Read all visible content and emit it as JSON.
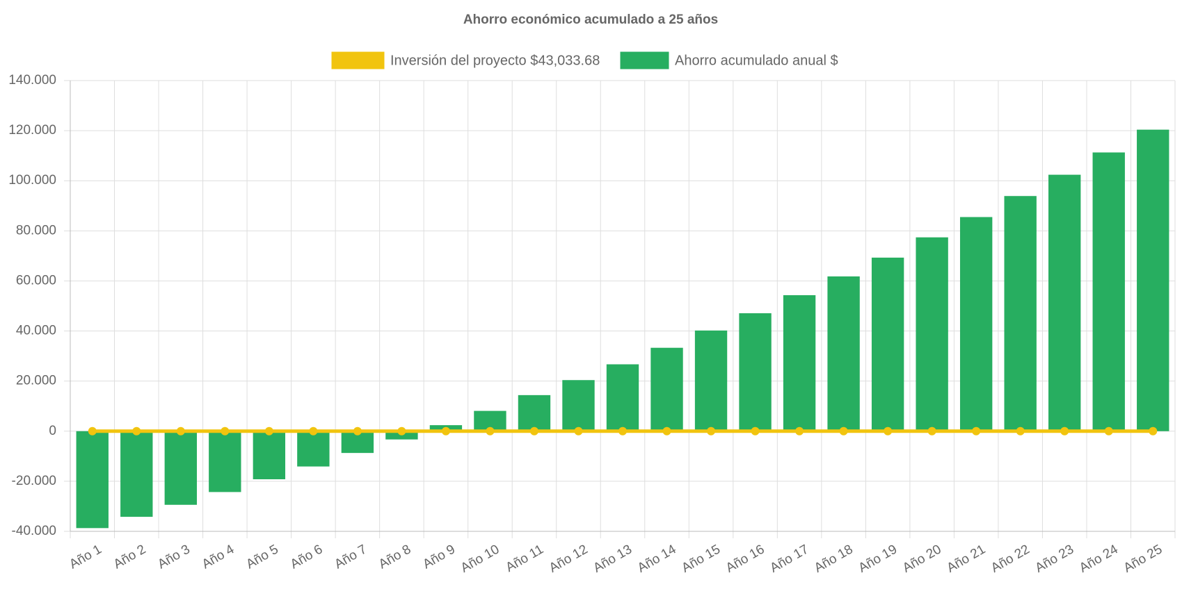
{
  "chart_data": {
    "type": "bar",
    "title": "Ahorro económico acumulado a 25 años",
    "categories": [
      "Año 1",
      "Año 2",
      "Año 3",
      "Año 4",
      "Año 5",
      "Año 6",
      "Año 7",
      "Año 8",
      "Año 9",
      "Año 10",
      "Año 11",
      "Año 12",
      "Año 13",
      "Año 14",
      "Año 15",
      "Año 16",
      "Año 17",
      "Año 18",
      "Año 19",
      "Año 20",
      "Año 21",
      "Año 22",
      "Año 23",
      "Año 24",
      "Año 25"
    ],
    "series": [
      {
        "name": "Inversión del proyecto $43,033.68",
        "type": "line",
        "color": "#f1c40f",
        "values": [
          0,
          0,
          0,
          0,
          0,
          0,
          0,
          0,
          0,
          0,
          0,
          0,
          0,
          0,
          0,
          0,
          0,
          0,
          0,
          0,
          0,
          0,
          0,
          0,
          0
        ]
      },
      {
        "name": "Ahorro acumulado anual $",
        "type": "bar",
        "color": "#27ae60",
        "values": [
          -38700,
          -34200,
          -29400,
          -24300,
          -19200,
          -14100,
          -8700,
          -3300,
          2400,
          8100,
          14400,
          20400,
          26700,
          33300,
          40200,
          47100,
          54300,
          61800,
          69300,
          77400,
          85500,
          93900,
          102400,
          111300,
          120400
        ]
      }
    ],
    "ylim": [
      -40000,
      140000
    ],
    "yticks": [
      {
        "value": -40000,
        "label": "-40.000"
      },
      {
        "value": -20000,
        "label": "-20.000"
      },
      0,
      {
        "value": 20000,
        "label": "20.000"
      },
      {
        "value": 40000,
        "label": "40.000"
      },
      {
        "value": 60000,
        "label": "60.000"
      },
      {
        "value": 80000,
        "label": "80.000"
      },
      {
        "value": 100000,
        "label": "100.000"
      },
      {
        "value": 120000,
        "label": "120.000"
      },
      {
        "value": 140000,
        "label": "140.000"
      }
    ],
    "grid": true
  }
}
